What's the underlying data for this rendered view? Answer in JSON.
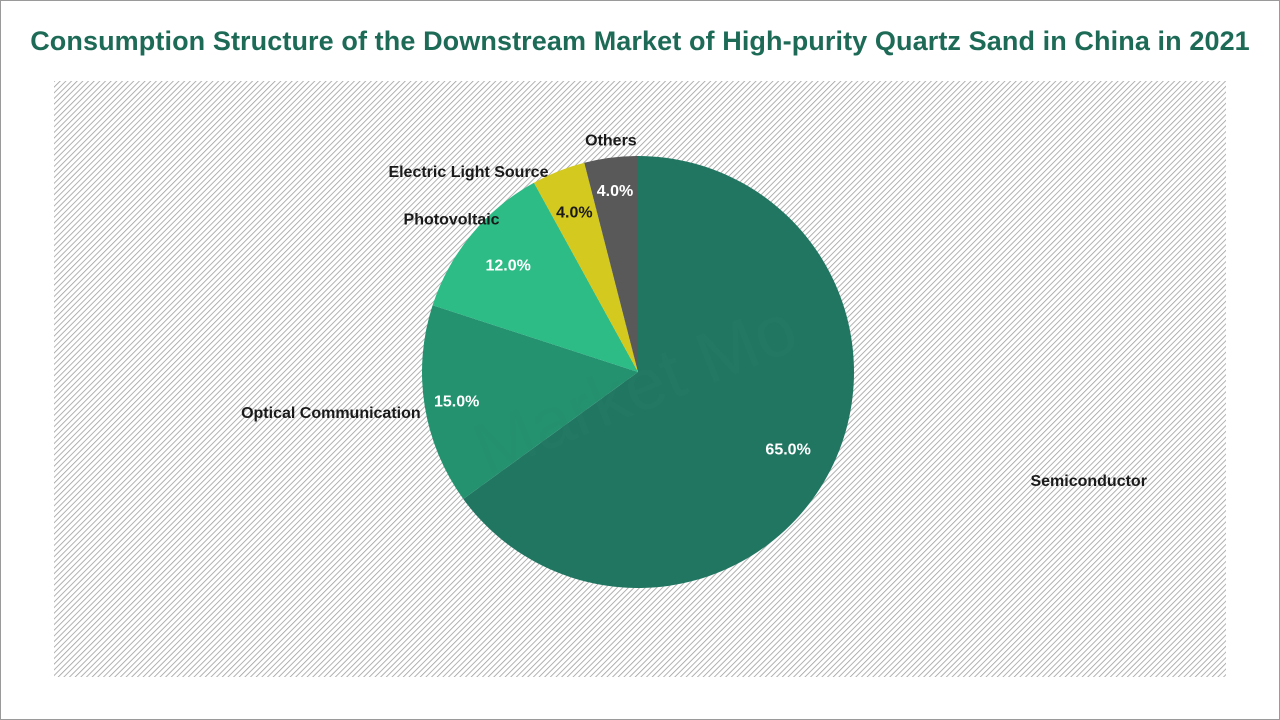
{
  "chart_data": {
    "type": "pie",
    "title": "Consumption Structure of the Downstream Market of High-purity Quartz Sand in China in 2021",
    "watermark": "Market Mo",
    "slices": [
      {
        "label": "Semiconductor",
        "value": 65.0,
        "display": "65.0%",
        "color": "#217662",
        "value_color": "#ffffff"
      },
      {
        "label": "Optical Communication",
        "value": 15.0,
        "display": "15.0%",
        "color": "#24926f",
        "value_color": "#ffffff"
      },
      {
        "label": "Photovoltaic",
        "value": 12.0,
        "display": "12.0%",
        "color": "#2dbb86",
        "value_color": "#ffffff"
      },
      {
        "label": "Electric Light Source",
        "value": 4.0,
        "display": "4.0%",
        "color": "#d4c91e",
        "value_color": "#1a1a1a"
      },
      {
        "label": "Others",
        "value": 4.0,
        "display": "4.0%",
        "color": "#595959",
        "value_color": "#ffffff"
      }
    ]
  }
}
